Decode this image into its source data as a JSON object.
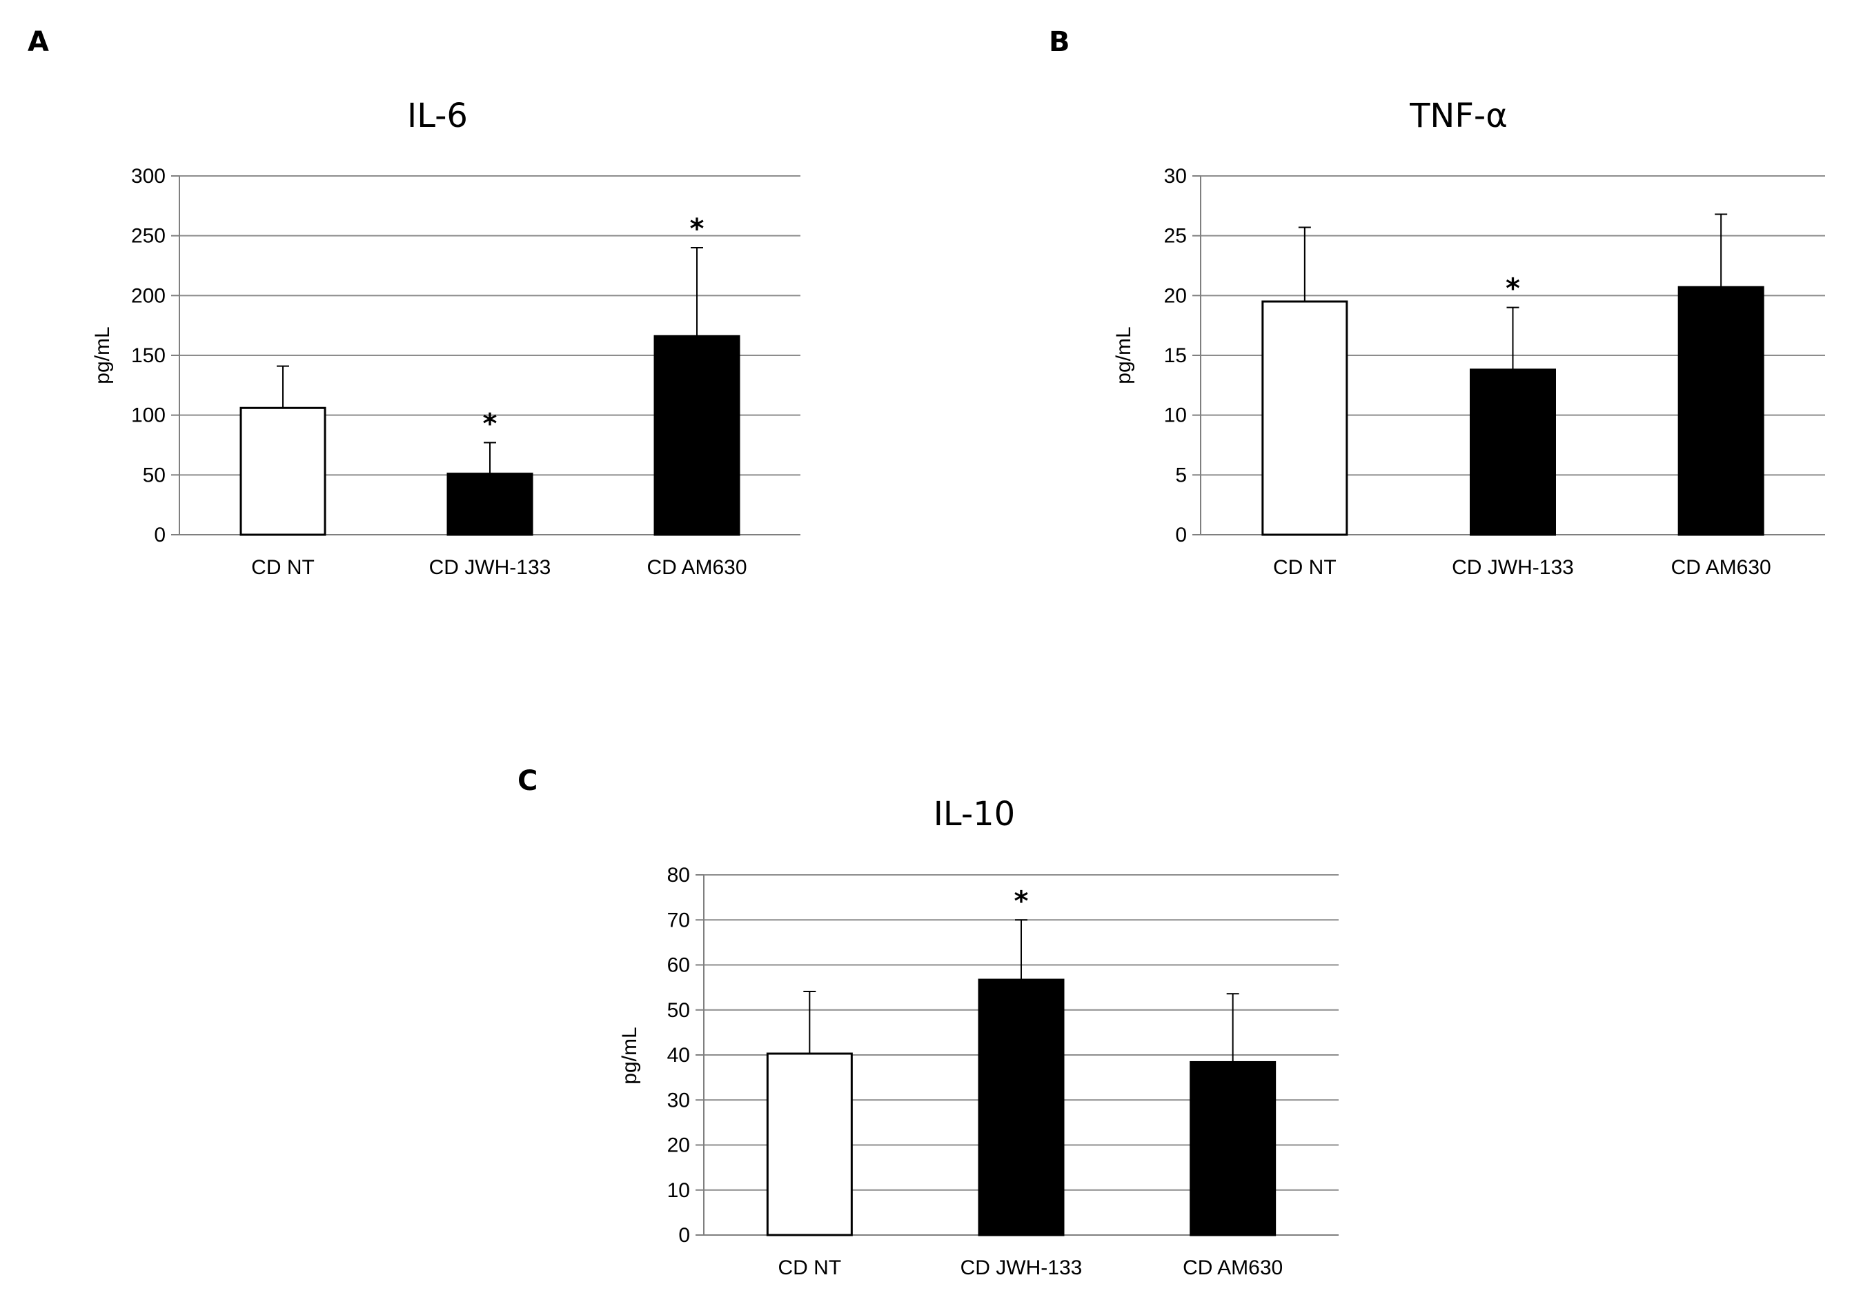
{
  "chart_data": [
    {
      "panel": "A",
      "type": "bar",
      "title": "IL-6",
      "xlabel": "",
      "ylabel": "pg/mL",
      "ylim": [
        0,
        300
      ],
      "yticks": [
        0,
        50,
        100,
        150,
        200,
        250,
        300
      ],
      "grid": true,
      "categories": [
        "CD NT",
        "CD JWH-133",
        "CD AM630"
      ],
      "values": [
        106,
        51,
        166
      ],
      "errors": [
        35,
        26,
        74
      ],
      "fills": [
        "white",
        "black",
        "black"
      ],
      "significance": [
        "",
        "*",
        "*"
      ]
    },
    {
      "panel": "B",
      "type": "bar",
      "title": "TNF-α",
      "xlabel": "",
      "ylabel": "pg/mL",
      "ylim": [
        0,
        30
      ],
      "yticks": [
        0,
        5,
        10,
        15,
        20,
        25,
        30
      ],
      "grid": true,
      "categories": [
        "CD NT",
        "CD JWH-133",
        "CD AM630"
      ],
      "values": [
        19.5,
        13.8,
        20.7
      ],
      "errors": [
        6.2,
        5.2,
        6.1
      ],
      "fills": [
        "white",
        "black",
        "black"
      ],
      "significance": [
        "",
        "*",
        ""
      ]
    },
    {
      "panel": "C",
      "type": "bar",
      "title": "IL-10",
      "xlabel": "",
      "ylabel": "pg/mL",
      "ylim": [
        0,
        80
      ],
      "yticks": [
        0,
        10,
        20,
        30,
        40,
        50,
        60,
        70,
        80
      ],
      "grid": true,
      "categories": [
        "CD NT",
        "CD JWH-133",
        "CD AM630"
      ],
      "values": [
        40.3,
        56.7,
        38.4
      ],
      "errors": [
        13.8,
        13.3,
        15.2
      ],
      "fills": [
        "white",
        "black",
        "black"
      ],
      "significance": [
        "",
        "*",
        ""
      ]
    }
  ],
  "colors": {
    "bar_black": "#000000",
    "bar_white": "#ffffff",
    "grid": "#8c8c8c",
    "axis": "#7f7f7f"
  }
}
